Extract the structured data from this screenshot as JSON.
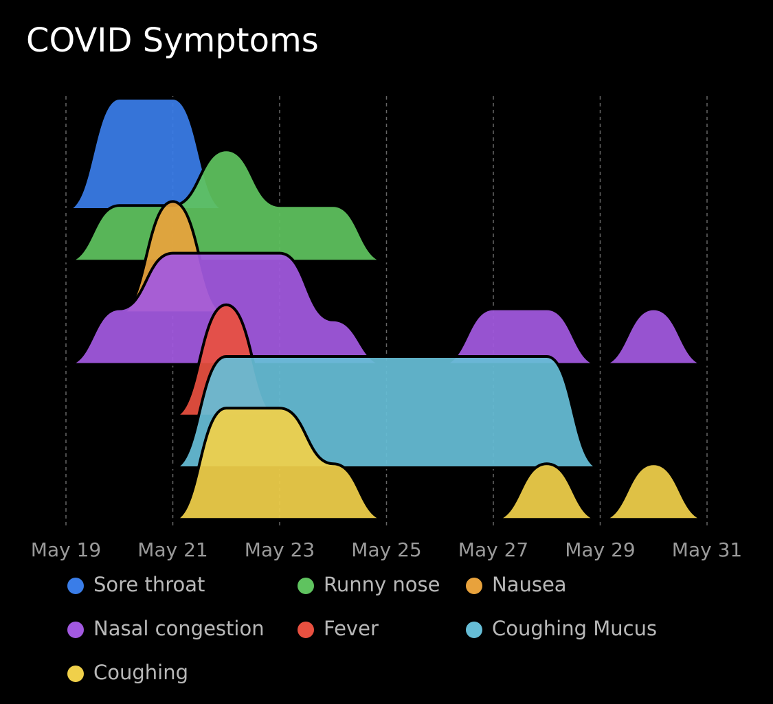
{
  "chart_data": {
    "type": "ridgeline",
    "title": "COVID Symptoms",
    "x": [
      "May 19",
      "May 20",
      "May 21",
      "May 22",
      "May 23",
      "May 24",
      "May 25",
      "May 26",
      "May 27",
      "May 28",
      "May 29",
      "May 30",
      "May 31"
    ],
    "xticks": [
      "May 19",
      "May 21",
      "May 23",
      "May 25",
      "May 27",
      "May 29",
      "May 31"
    ],
    "ylim": [
      0,
      1
    ],
    "grid": true,
    "series": [
      {
        "name": "Sore throat",
        "color": "#3a7de8",
        "values": [
          0,
          1,
          1,
          0,
          null,
          null,
          null,
          null,
          null,
          null,
          null,
          null,
          null
        ]
      },
      {
        "name": "Runny nose",
        "color": "#5fc35f",
        "values": [
          0,
          0.5,
          0.5,
          1,
          0.5,
          0.5,
          0,
          null,
          null,
          null,
          null,
          null,
          null
        ]
      },
      {
        "name": "Nausea",
        "color": "#e8a23c",
        "values": [
          null,
          0,
          1,
          0,
          null,
          null,
          null,
          null,
          null,
          null,
          null,
          null,
          null
        ]
      },
      {
        "name": "Nasal congestion",
        "color": "#a259e0",
        "values": [
          0,
          0.5,
          1,
          1,
          1,
          0.4,
          0,
          0,
          0.5,
          0.5,
          0,
          0.5,
          0
        ]
      },
      {
        "name": "Fever",
        "color": "#e85040",
        "values": [
          null,
          null,
          0,
          1,
          0,
          null,
          null,
          null,
          null,
          null,
          null,
          null,
          null
        ]
      },
      {
        "name": "Coughing Mucus",
        "color": "#66bdd6",
        "values": [
          null,
          null,
          0,
          1,
          1,
          1,
          1,
          1,
          1,
          1,
          0,
          null,
          null
        ]
      },
      {
        "name": "Coughing",
        "color": "#f0d04a",
        "values": [
          null,
          null,
          0,
          1,
          1,
          0.5,
          0,
          0,
          0,
          0.5,
          0,
          0.5,
          0
        ]
      }
    ]
  }
}
